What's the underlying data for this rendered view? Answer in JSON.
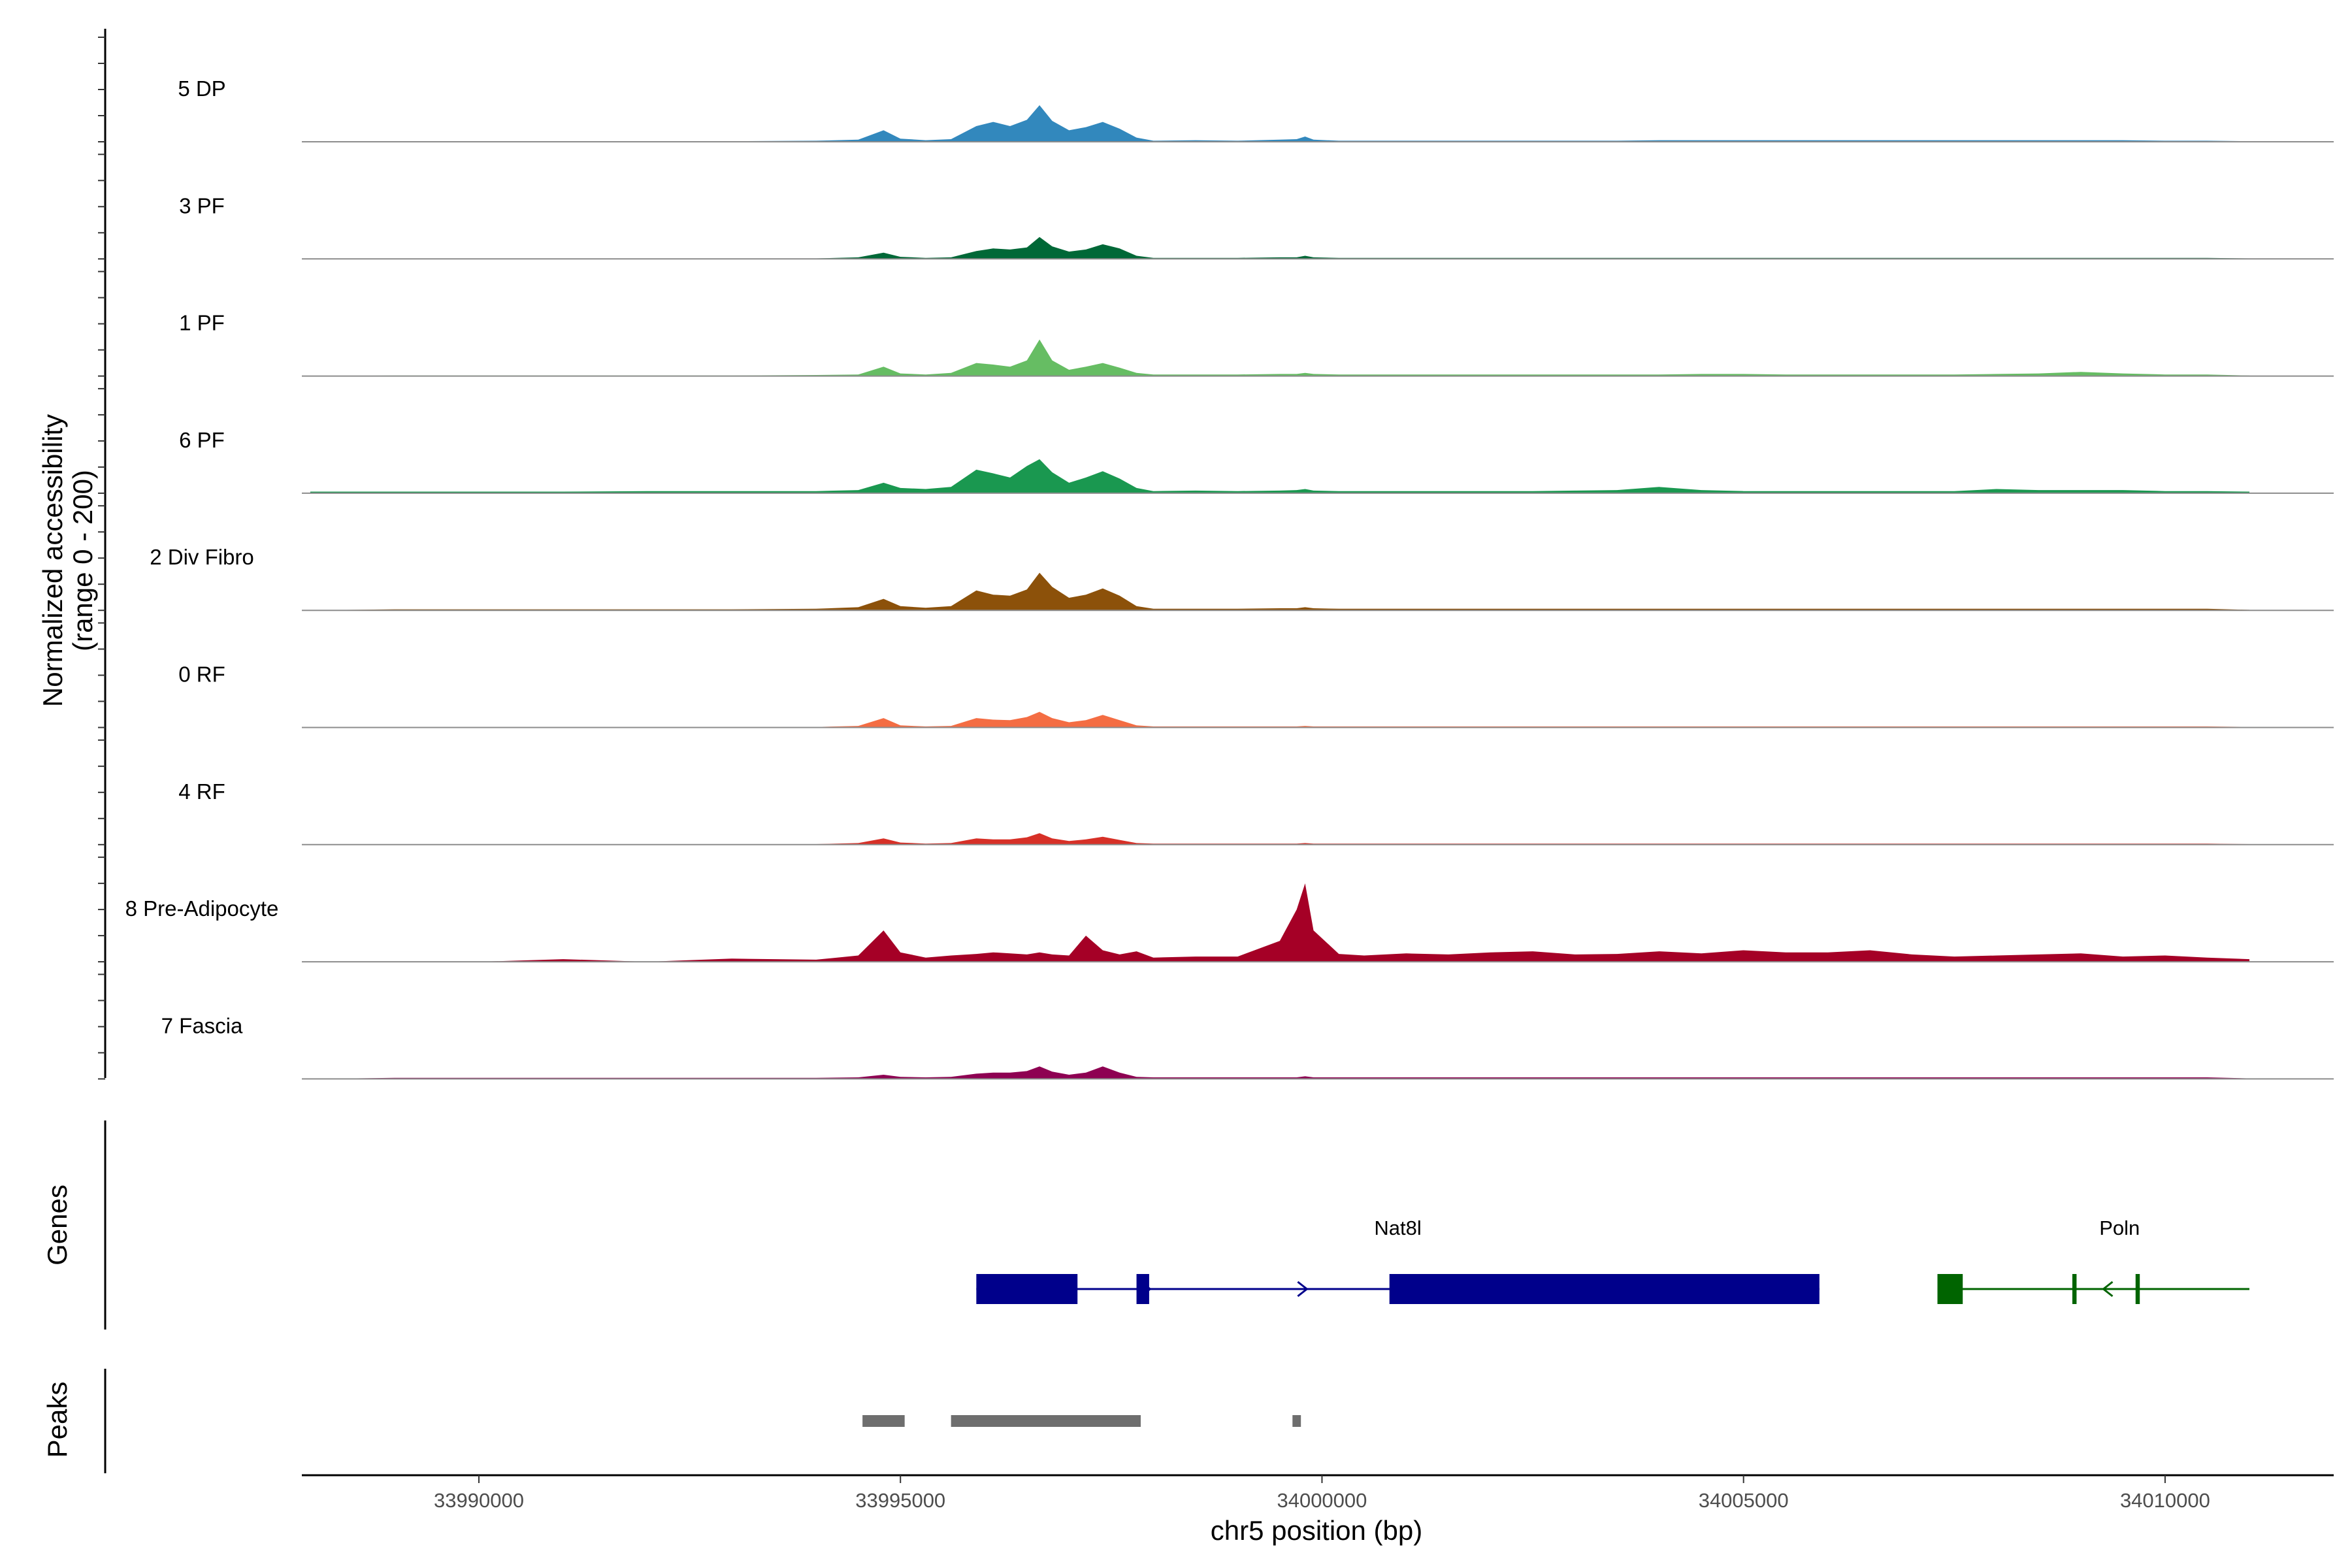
{
  "chart_data": {
    "type": "area",
    "title": "",
    "xlabel": "chr5 position (bp)",
    "ylabel": "Normalized accessibility\n(range 0 - 200)",
    "ylim": [
      0,
      200
    ],
    "xlim": [
      33987900,
      34012000
    ],
    "x_ticks": [
      33990000,
      33995000,
      34000000,
      34005000,
      34010000
    ],
    "x_tick_labels": [
      "33990000",
      "33995000",
      "34000000",
      "34005000",
      "34010000"
    ],
    "grid": false,
    "legend": "none",
    "x": [
      33988000,
      33989000,
      33990000,
      33991000,
      33992000,
      33993000,
      33994000,
      33994500,
      33994800,
      33995000,
      33995300,
      33995600,
      33995900,
      33996100,
      33996300,
      33996500,
      33996650,
      33996800,
      33997000,
      33997200,
      33997400,
      33997600,
      33997800,
      33998000,
      33998500,
      33999000,
      33999500,
      33999700,
      33999800,
      33999900,
      34000200,
      34000500,
      34001000,
      34001500,
      34002000,
      34002500,
      34003000,
      34003500,
      34004000,
      34004500,
      34005000,
      34005500,
      34006000,
      34006500,
      34007000,
      34007500,
      34008000,
      34008500,
      34009000,
      34009500,
      34010000,
      34010500,
      34011000
    ],
    "series": [
      {
        "name": "5 DP",
        "color": "#3288bd",
        "values": [
          0,
          1,
          1,
          1,
          1,
          1,
          2,
          4,
          22,
          6,
          3,
          5,
          30,
          38,
          30,
          42,
          70,
          40,
          22,
          28,
          38,
          25,
          8,
          2,
          3,
          2,
          4,
          5,
          10,
          4,
          2,
          2,
          2,
          2,
          2,
          2,
          2,
          2,
          3,
          3,
          3,
          3,
          3,
          3,
          3,
          3,
          3,
          3,
          3,
          3,
          2,
          2,
          1
        ]
      },
      {
        "name": "3 PF",
        "color": "#006837",
        "values": [
          0,
          1,
          1,
          1,
          1,
          1,
          1,
          3,
          12,
          4,
          2,
          3,
          15,
          20,
          18,
          22,
          42,
          24,
          14,
          18,
          28,
          20,
          6,
          2,
          2,
          2,
          3,
          3,
          6,
          3,
          2,
          2,
          2,
          2,
          2,
          2,
          2,
          2,
          2,
          2,
          2,
          2,
          2,
          2,
          2,
          2,
          2,
          2,
          2,
          2,
          2,
          2,
          1
        ]
      },
      {
        "name": "1 PF",
        "color": "#66bd63",
        "values": [
          0,
          1,
          1,
          1,
          1,
          1,
          2,
          3,
          18,
          5,
          3,
          6,
          25,
          22,
          18,
          30,
          70,
          30,
          12,
          18,
          25,
          16,
          6,
          3,
          3,
          3,
          4,
          4,
          6,
          4,
          3,
          3,
          3,
          3,
          3,
          3,
          3,
          3,
          3,
          4,
          4,
          3,
          3,
          3,
          3,
          3,
          4,
          5,
          8,
          5,
          3,
          3,
          1
        ]
      },
      {
        "name": "6 PF",
        "color": "#1a9850",
        "values": [
          3,
          3,
          3,
          3,
          4,
          4,
          4,
          6,
          20,
          10,
          8,
          12,
          45,
          38,
          30,
          52,
          65,
          40,
          20,
          30,
          42,
          28,
          10,
          4,
          5,
          4,
          5,
          6,
          8,
          5,
          4,
          4,
          4,
          4,
          4,
          4,
          5,
          6,
          12,
          6,
          4,
          4,
          4,
          4,
          4,
          4,
          8,
          6,
          6,
          6,
          4,
          4,
          3
        ]
      },
      {
        "name": "2 Div Fibro",
        "color": "#8c510a",
        "values": [
          0,
          2,
          2,
          2,
          2,
          2,
          3,
          6,
          22,
          8,
          5,
          8,
          38,
          30,
          28,
          40,
          72,
          45,
          24,
          30,
          42,
          28,
          8,
          3,
          3,
          3,
          4,
          4,
          6,
          4,
          3,
          3,
          3,
          3,
          3,
          3,
          3,
          3,
          3,
          3,
          3,
          3,
          3,
          3,
          3,
          3,
          3,
          3,
          3,
          3,
          3,
          3,
          1
        ]
      },
      {
        "name": "0 RF",
        "color": "#f46d43",
        "values": [
          0,
          1,
          1,
          1,
          1,
          1,
          1,
          3,
          18,
          4,
          2,
          3,
          18,
          15,
          14,
          20,
          30,
          18,
          10,
          14,
          24,
          14,
          4,
          2,
          2,
          2,
          2,
          2,
          3,
          2,
          2,
          2,
          2,
          2,
          2,
          2,
          2,
          2,
          2,
          2,
          2,
          2,
          2,
          2,
          2,
          2,
          2,
          2,
          2,
          2,
          2,
          2,
          1
        ]
      },
      {
        "name": "4 RF",
        "color": "#d73027",
        "values": [
          0,
          1,
          1,
          1,
          1,
          1,
          1,
          3,
          12,
          4,
          2,
          3,
          12,
          10,
          10,
          14,
          22,
          12,
          7,
          10,
          15,
          9,
          3,
          2,
          2,
          2,
          2,
          2,
          3,
          2,
          2,
          2,
          2,
          2,
          2,
          2,
          2,
          2,
          2,
          2,
          2,
          2,
          2,
          2,
          2,
          2,
          2,
          2,
          2,
          2,
          2,
          2,
          1
        ]
      },
      {
        "name": "8 Pre-Adipocyte",
        "color": "#a50026",
        "values": [
          0,
          0,
          0,
          5,
          0,
          6,
          4,
          12,
          60,
          18,
          8,
          12,
          15,
          18,
          16,
          14,
          18,
          14,
          12,
          50,
          22,
          14,
          20,
          8,
          10,
          10,
          40,
          100,
          150,
          60,
          15,
          12,
          16,
          14,
          18,
          20,
          14,
          15,
          20,
          16,
          22,
          18,
          18,
          22,
          14,
          10,
          12,
          14,
          16,
          10,
          12,
          8,
          5
        ]
      },
      {
        "name": "7 Fascia",
        "color": "#8e0152",
        "values": [
          0,
          2,
          2,
          2,
          2,
          2,
          2,
          3,
          8,
          4,
          3,
          4,
          10,
          12,
          12,
          15,
          24,
          14,
          8,
          12,
          24,
          12,
          4,
          3,
          3,
          3,
          3,
          3,
          5,
          3,
          3,
          3,
          3,
          3,
          3,
          3,
          3,
          3,
          3,
          3,
          3,
          3,
          3,
          3,
          3,
          3,
          3,
          3,
          3,
          3,
          3,
          3,
          1
        ]
      }
    ],
    "genes": {
      "title": "Genes",
      "items": [
        {
          "name": "Nat8l",
          "strand": "+",
          "start": 33995900,
          "end": 34005900,
          "color": "#00008b",
          "exons": [
            [
              33995900,
              33997100
            ],
            [
              33997800,
              33997950
            ],
            [
              34000800,
              34005900
            ]
          ]
        },
        {
          "name": "Poln",
          "strand": "-",
          "start": 34007300,
          "end": 34011000,
          "color": "#006400",
          "exons": [
            [
              34007300,
              34007600
            ],
            [
              34008900,
              34008950
            ],
            [
              34009650,
              34009700
            ]
          ]
        }
      ]
    },
    "peaks": {
      "title": "Peaks",
      "color": "#6e6e6e",
      "items": [
        [
          33994550,
          33995050
        ],
        [
          33995600,
          33997850
        ],
        [
          33999650,
          33999750
        ]
      ]
    }
  }
}
